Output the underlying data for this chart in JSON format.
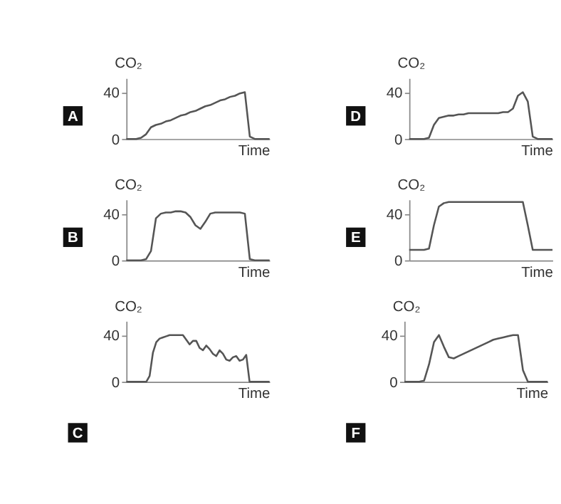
{
  "chart_data": [
    {
      "type": "line",
      "ylabel": "CO₂",
      "xlabel": "Time",
      "annotations": [
        "A"
      ],
      "ylim": [
        0,
        52
      ],
      "yticks": [
        0,
        40
      ],
      "tick_labels": "y",
      "categories": [
        null,
        null,
        null,
        null,
        null,
        null,
        null,
        null,
        null,
        null,
        null,
        null,
        null,
        null,
        null,
        null,
        null,
        null,
        null,
        null,
        null,
        null,
        null,
        null,
        null,
        null,
        null,
        null,
        null,
        null
      ],
      "series": [
        {
          "color": "#555555",
          "values": [
            0,
            0,
            0,
            1,
            4,
            10,
            12,
            13,
            15,
            16,
            18,
            20,
            21,
            23,
            24,
            26,
            28,
            29,
            31,
            33,
            34,
            36,
            37,
            39,
            40,
            2,
            0,
            0,
            0,
            0
          ]
        }
      ]
    },
    {
      "type": "line",
      "ylabel": "CO₂",
      "xlabel": "Time",
      "annotations": [
        "D"
      ],
      "ylim": [
        0,
        52
      ],
      "yticks": [
        0,
        40
      ],
      "tick_labels": "y",
      "categories": [
        null,
        null,
        null,
        null,
        null,
        null,
        null,
        null,
        null,
        null,
        null,
        null,
        null,
        null,
        null,
        null,
        null,
        null,
        null,
        null,
        null,
        null,
        null,
        null,
        null,
        null,
        null,
        null,
        null,
        null
      ],
      "series": [
        {
          "color": "#555555",
          "values": [
            0,
            0,
            0,
            0,
            1,
            12,
            18,
            19,
            20,
            20,
            21,
            21,
            22,
            22,
            22,
            22,
            22,
            22,
            22,
            23,
            23,
            26,
            37,
            40,
            32,
            2,
            0,
            0,
            0,
            0
          ]
        }
      ]
    },
    {
      "type": "line",
      "ylabel": "CO₂",
      "xlabel": "Time",
      "annotations": [
        "B"
      ],
      "ylim": [
        0,
        52
      ],
      "yticks": [
        0,
        40
      ],
      "tick_labels": "y",
      "categories": [
        null,
        null,
        null,
        null,
        null,
        null,
        null,
        null,
        null,
        null,
        null,
        null,
        null,
        null,
        null,
        null,
        null,
        null,
        null,
        null,
        null,
        null,
        null,
        null,
        null,
        null,
        null,
        null,
        null,
        null
      ],
      "series": [
        {
          "color": "#555555",
          "values": [
            0,
            0,
            0,
            0,
            1,
            8,
            36,
            40,
            41,
            41,
            42,
            42,
            41,
            37,
            30,
            27,
            33,
            40,
            41,
            41,
            41,
            41,
            41,
            41,
            40,
            1,
            0,
            0,
            0,
            0
          ]
        }
      ]
    },
    {
      "type": "line",
      "ylabel": "CO₂",
      "xlabel": "Time",
      "annotations": [
        "E"
      ],
      "ylim": [
        0,
        52
      ],
      "yticks": [
        0,
        40
      ],
      "tick_labels": "y",
      "categories": [
        null,
        null,
        null,
        null,
        null,
        null,
        null,
        null,
        null,
        null,
        null,
        null,
        null,
        null,
        null,
        null,
        null,
        null,
        null,
        null,
        null,
        null,
        null,
        null,
        null,
        null,
        null,
        null,
        null,
        null
      ],
      "series": [
        {
          "color": "#555555",
          "values": [
            9,
            9,
            9,
            9,
            10,
            30,
            46,
            49,
            50,
            50,
            50,
            50,
            50,
            50,
            50,
            50,
            50,
            50,
            50,
            50,
            50,
            50,
            50,
            50,
            30,
            9,
            9,
            9,
            9,
            9
          ]
        }
      ]
    },
    {
      "type": "line",
      "ylabel": "CO₂",
      "xlabel": "Time",
      "annotations": [
        "C"
      ],
      "ylim": [
        0,
        52
      ],
      "yticks": [
        0,
        40
      ],
      "tick_labels": "y",
      "categories": [
        null,
        null,
        null,
        null,
        null,
        null,
        null,
        null,
        null,
        null,
        null,
        null,
        null,
        null,
        null,
        null,
        null,
        null,
        null,
        null,
        null,
        null,
        null,
        null,
        null,
        null,
        null,
        null,
        null,
        null,
        null,
        null,
        null,
        null,
        null,
        null,
        null,
        null,
        null,
        null,
        null,
        null,
        null,
        null
      ],
      "series": [
        {
          "color": "#555555",
          "values": [
            0,
            0,
            0,
            0,
            0,
            0,
            0,
            5,
            25,
            34,
            37,
            38,
            39,
            40,
            40,
            40,
            40,
            40,
            36,
            32,
            35,
            35,
            29,
            27,
            31,
            28,
            24,
            22,
            27,
            24,
            19,
            18,
            21,
            22,
            18,
            19,
            23,
            0,
            0,
            0,
            0,
            0,
            0,
            0
          ]
        }
      ]
    },
    {
      "type": "line",
      "ylabel": "CO₂",
      "xlabel": "Time",
      "annotations": [
        "F"
      ],
      "ylim": [
        0,
        52
      ],
      "yticks": [
        0,
        40
      ],
      "tick_labels": "y",
      "categories": [
        null,
        null,
        null,
        null,
        null,
        null,
        null,
        null,
        null,
        null,
        null,
        null,
        null,
        null,
        null,
        null,
        null,
        null,
        null,
        null,
        null,
        null,
        null,
        null,
        null,
        null,
        null,
        null,
        null,
        null
      ],
      "series": [
        {
          "color": "#555555",
          "values": [
            0,
            0,
            0,
            0,
            1,
            15,
            34,
            40,
            30,
            21,
            20,
            22,
            24,
            26,
            28,
            30,
            32,
            34,
            36,
            37,
            38,
            39,
            40,
            40,
            10,
            0,
            0,
            0,
            0,
            0
          ]
        }
      ]
    }
  ]
}
